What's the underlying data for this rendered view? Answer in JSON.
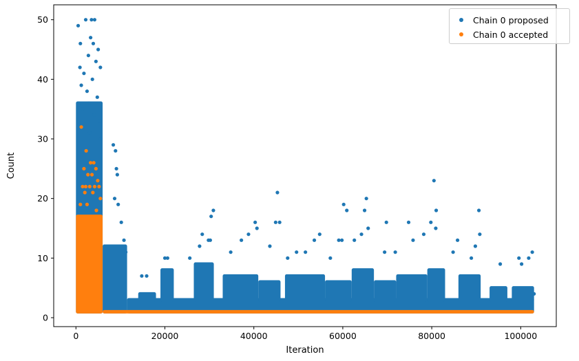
{
  "chart_data": {
    "type": "scatter",
    "title": "",
    "xlabel": "Iteration",
    "ylabel": "Count",
    "xlim": [
      -5000,
      108000
    ],
    "ylim": [
      -1.5,
      52.5
    ],
    "xticks": [
      0,
      20000,
      40000,
      60000,
      80000,
      100000
    ],
    "yticks": [
      0,
      10,
      20,
      30,
      40,
      50
    ],
    "grid": false,
    "legend_position": "top-right",
    "series": [
      {
        "name": "Chain 0 proposed",
        "color": "#1f77b4",
        "points": [
          [
            500,
            49
          ],
          [
            1000,
            46
          ],
          [
            2200,
            50
          ],
          [
            3500,
            50
          ],
          [
            4200,
            50
          ],
          [
            900,
            42
          ],
          [
            1800,
            41
          ],
          [
            2800,
            44
          ],
          [
            3300,
            47
          ],
          [
            3900,
            46
          ],
          [
            4500,
            43
          ],
          [
            5000,
            45
          ],
          [
            5500,
            42
          ],
          [
            1200,
            39
          ],
          [
            2500,
            38
          ],
          [
            3700,
            40
          ],
          [
            4800,
            37
          ],
          [
            1500,
            35
          ],
          [
            2900,
            36
          ],
          [
            4100,
            34
          ],
          [
            5300,
            33
          ],
          [
            600,
            36
          ],
          [
            3100,
            31
          ],
          [
            5600,
            30
          ],
          [
            8400,
            29
          ],
          [
            8900,
            28
          ],
          [
            9100,
            25
          ],
          [
            9300,
            24
          ],
          [
            8700,
            20
          ],
          [
            9500,
            19
          ],
          [
            10200,
            16
          ],
          [
            10800,
            13
          ],
          [
            11200,
            11
          ],
          [
            14800,
            7
          ],
          [
            15900,
            7
          ],
          [
            20000,
            10
          ],
          [
            20600,
            10
          ],
          [
            25600,
            10
          ],
          [
            27800,
            12
          ],
          [
            28400,
            14
          ],
          [
            29800,
            13
          ],
          [
            30400,
            17
          ],
          [
            30900,
            18
          ],
          [
            30200,
            13
          ],
          [
            34800,
            11
          ],
          [
            37200,
            13
          ],
          [
            38800,
            14
          ],
          [
            40300,
            16
          ],
          [
            40700,
            15
          ],
          [
            44900,
            16
          ],
          [
            45300,
            21
          ],
          [
            45800,
            16
          ],
          [
            43600,
            12
          ],
          [
            47600,
            10
          ],
          [
            49600,
            11
          ],
          [
            51600,
            11
          ],
          [
            53600,
            13
          ],
          [
            54800,
            14
          ],
          [
            57200,
            10
          ],
          [
            59100,
            13
          ],
          [
            60200,
            19
          ],
          [
            60900,
            18
          ],
          [
            59800,
            13
          ],
          [
            62600,
            13
          ],
          [
            64200,
            14
          ],
          [
            64900,
            18
          ],
          [
            65300,
            20
          ],
          [
            65700,
            15
          ],
          [
            69800,
            16
          ],
          [
            69400,
            11
          ],
          [
            71800,
            11
          ],
          [
            74800,
            16
          ],
          [
            75800,
            13
          ],
          [
            78200,
            14
          ],
          [
            79800,
            16
          ],
          [
            80500,
            23
          ],
          [
            81000,
            18
          ],
          [
            80900,
            15
          ],
          [
            84800,
            11
          ],
          [
            85800,
            13
          ],
          [
            88900,
            10
          ],
          [
            89800,
            12
          ],
          [
            90600,
            18
          ],
          [
            90800,
            14
          ],
          [
            95400,
            9
          ],
          [
            99600,
            10
          ],
          [
            100200,
            9
          ],
          [
            101800,
            10
          ],
          [
            102600,
            11
          ],
          [
            103000,
            4
          ]
        ]
      },
      {
        "name": "Chain 0 accepted",
        "color": "#ff7f0e",
        "points": [
          [
            1200,
            32
          ],
          [
            2300,
            28
          ],
          [
            3300,
            26
          ],
          [
            4000,
            26
          ],
          [
            4500,
            25
          ],
          [
            1800,
            25
          ],
          [
            2700,
            24
          ],
          [
            3600,
            24
          ],
          [
            4900,
            23
          ],
          [
            1500,
            22
          ],
          [
            2200,
            22
          ],
          [
            3100,
            22
          ],
          [
            4200,
            22
          ],
          [
            5200,
            22
          ],
          [
            2000,
            21
          ],
          [
            3800,
            21
          ],
          [
            5500,
            20
          ],
          [
            1000,
            19
          ],
          [
            2500,
            19
          ],
          [
            4600,
            18
          ]
        ]
      }
    ]
  }
}
